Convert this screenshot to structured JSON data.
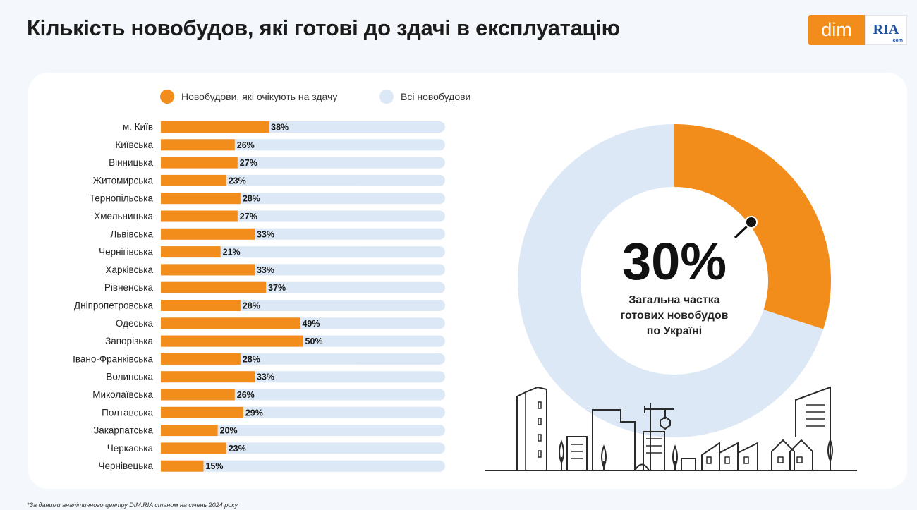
{
  "title": "Кількість новобудов, які готові до здачі в експлуатацію",
  "logo": {
    "left": "dim",
    "right": "RIA",
    "suffix": ".com"
  },
  "colors": {
    "accent": "#f28c1b",
    "track": "#dce8f5",
    "text": "#1a1a1a"
  },
  "legend": [
    {
      "label": "Новобудови, які очікують на здачу",
      "color": "#f28c1b"
    },
    {
      "label": "Всі новобудови",
      "color": "#dce8f5"
    }
  ],
  "chart_data": [
    {
      "type": "bar",
      "orientation": "horizontal",
      "categories": [
        "м. Київ",
        "Київська",
        "Вінницька",
        "Житомирська",
        "Тернопільська",
        "Хмельницька",
        "Львівська",
        "Чернігівська",
        "Харківська",
        "Рівненська",
        "Дніпропетровська",
        "Одеська",
        "Запорізька",
        "Івано-Франківська",
        "Волинська",
        "Миколаївська",
        "Полтавська",
        "Закарпатська",
        "Черкаська",
        "Чернівецька"
      ],
      "series": [
        {
          "name": "Новобудови, які очікують на здачу",
          "values": [
            38,
            26,
            27,
            23,
            28,
            27,
            33,
            21,
            33,
            37,
            28,
            49,
            50,
            28,
            33,
            26,
            29,
            20,
            23,
            15
          ]
        },
        {
          "name": "Всі новобудови",
          "values": [
            100,
            100,
            100,
            100,
            100,
            100,
            100,
            100,
            100,
            100,
            100,
            100,
            100,
            100,
            100,
            100,
            100,
            100,
            100,
            100
          ]
        }
      ],
      "data_labels": [
        "38%",
        "26%",
        "27%",
        "23%",
        "28%",
        "27%",
        "33%",
        "21%",
        "33%",
        "37%",
        "28%",
        "49%",
        "50%",
        "28%",
        "33%",
        "26%",
        "29%",
        "20%",
        "23%",
        "15%"
      ],
      "xlim": [
        0,
        100
      ]
    },
    {
      "type": "pie",
      "donut": true,
      "values": [
        30,
        70
      ],
      "center_value": "30%",
      "center_label": [
        "Загальна частка",
        "готових новобудов",
        "по Україні"
      ]
    }
  ],
  "footnote": "*За даними аналітичного центру DIM.RIA станом на січень 2024 року"
}
